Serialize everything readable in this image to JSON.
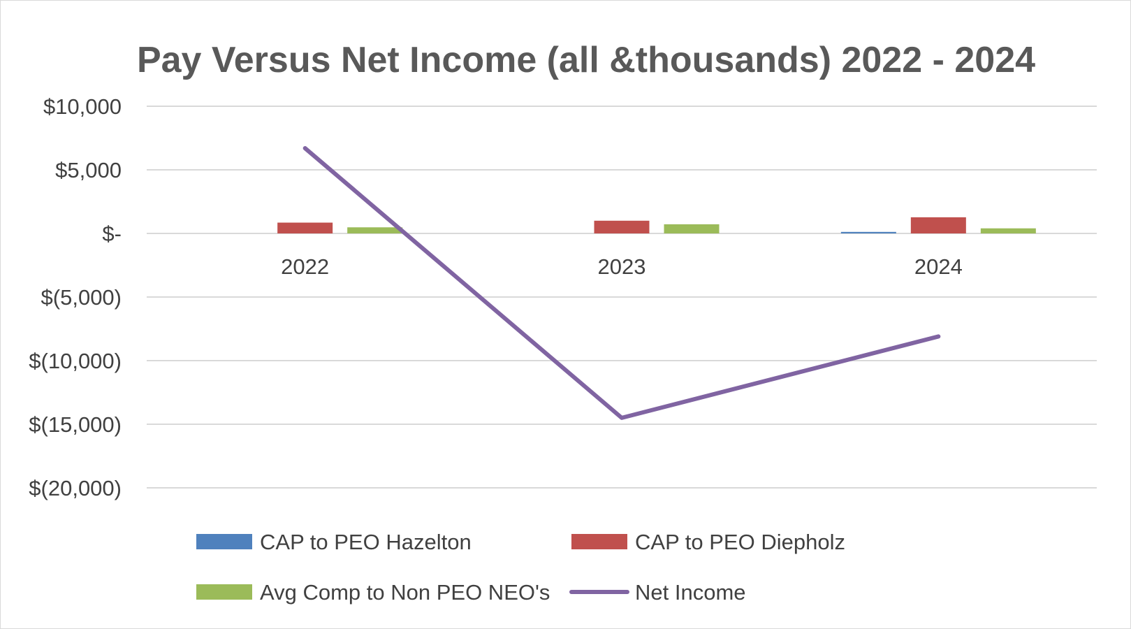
{
  "chart_data": {
    "type": "bar",
    "title": "Pay Versus Net Income (all &thousands) 2022 - 2024",
    "categories": [
      "2022",
      "2023",
      "2024"
    ],
    "ylim": [
      -20000,
      10000
    ],
    "y_ticks": [
      10000,
      5000,
      0,
      -5000,
      -10000,
      -15000,
      -20000
    ],
    "y_tick_labels": [
      "$10,000",
      "$5,000",
      "$-",
      "$(5,000)",
      "$(10,000)",
      "$(15,000)",
      "$(20,000)"
    ],
    "grid": true,
    "legend_position": "bottom",
    "series": [
      {
        "name": "CAP to PEO Hazelton",
        "type": "bar",
        "color": "#4f81bd",
        "values": [
          0,
          0,
          120
        ]
      },
      {
        "name": "CAP to PEO Diepholz",
        "type": "bar",
        "color": "#c0504d",
        "values": [
          850,
          1000,
          1270
        ]
      },
      {
        "name": "Avg Comp to Non PEO NEO's",
        "type": "bar",
        "color": "#9bbb59",
        "values": [
          480,
          720,
          400
        ]
      },
      {
        "name": "Net Income",
        "type": "line",
        "color": "#8064a2",
        "values": [
          6700,
          -14500,
          -8100
        ]
      }
    ]
  }
}
